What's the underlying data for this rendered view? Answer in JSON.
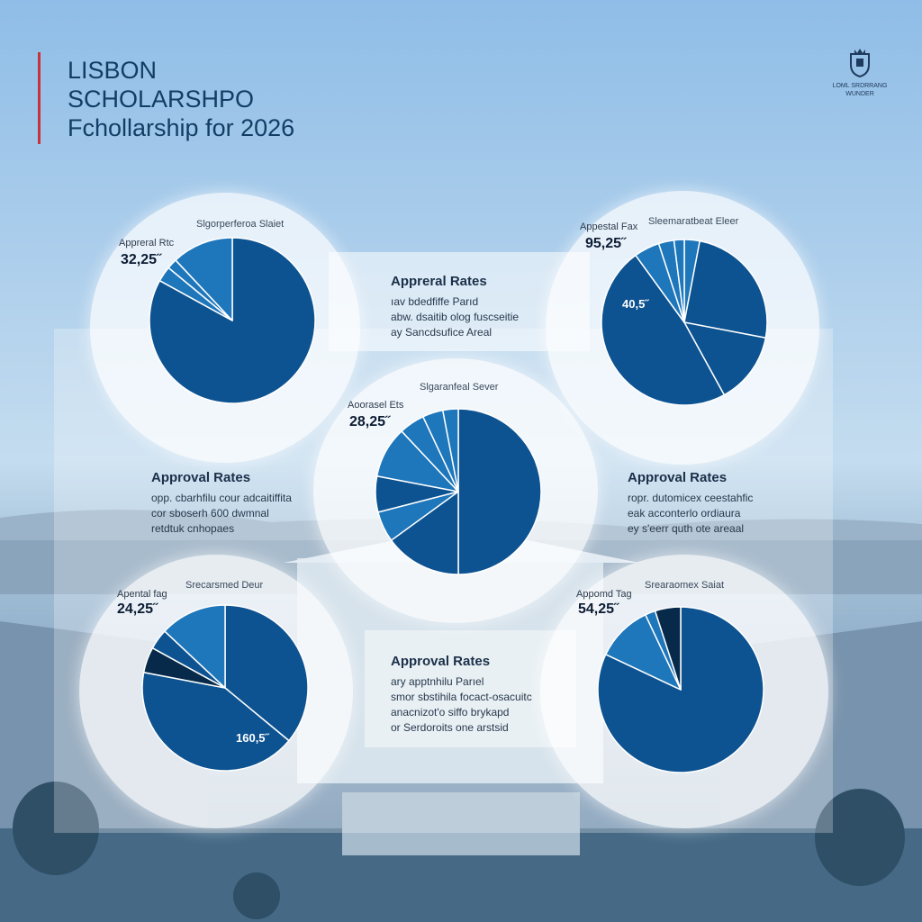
{
  "header": {
    "title_line1": "LISBON",
    "title_line2": "SCHOLARSHPO",
    "title_line3": "Fchollarship for 2026",
    "crest_line1": "LOML  SRDRRANG",
    "crest_line2": "WUNDER"
  },
  "colors": {
    "accent": "#c8323c",
    "pie_dark": "#0d5391",
    "pie_light": "#1e76bb",
    "pie_navy": "#072a4a"
  },
  "chart_data": [
    {
      "type": "pie",
      "caption": "Slgorperferoa Slaiet",
      "label": "Appreral Rtc",
      "value_label": "32,25˝",
      "slices": [
        {
          "value": 83,
          "color": "dark"
        },
        {
          "value": 3,
          "color": "light"
        },
        {
          "value": 2,
          "color": "light"
        },
        {
          "value": 12,
          "color": "light"
        }
      ]
    },
    {
      "type": "pie",
      "caption": "Sleemaratbeat Eleer",
      "label": "Appestal Fax",
      "value_label": "95,25˝",
      "inside_label": "40,5˝",
      "slices": [
        {
          "value": 3,
          "color": "light"
        },
        {
          "value": 25,
          "color": "dark"
        },
        {
          "value": 14,
          "color": "dark"
        },
        {
          "value": 48,
          "color": "dark"
        },
        {
          "value": 5,
          "color": "light"
        },
        {
          "value": 3,
          "color": "light"
        },
        {
          "value": 2,
          "color": "light"
        }
      ]
    },
    {
      "type": "pie",
      "caption": "Slgaranfeal Sever",
      "label": "Aoorasel Ets",
      "value_label": "28,25˝",
      "slices": [
        {
          "value": 50,
          "color": "dark"
        },
        {
          "value": 15,
          "color": "dark"
        },
        {
          "value": 6,
          "color": "light"
        },
        {
          "value": 7,
          "color": "dark"
        },
        {
          "value": 10,
          "color": "light"
        },
        {
          "value": 5,
          "color": "light"
        },
        {
          "value": 4,
          "color": "light"
        },
        {
          "value": 3,
          "color": "light"
        }
      ]
    },
    {
      "type": "pie",
      "caption": "Srecarsmed Deur",
      "label": "Apental fag",
      "value_label": "24,25˝",
      "inside_label": "160,5˝",
      "slices": [
        {
          "value": 36,
          "color": "dark"
        },
        {
          "value": 42,
          "color": "dark"
        },
        {
          "value": 5,
          "color": "navy"
        },
        {
          "value": 4,
          "color": "dark"
        },
        {
          "value": 13,
          "color": "light"
        }
      ]
    },
    {
      "type": "pie",
      "caption": "Srearaomex Saiat",
      "label": "Appomd Tag",
      "value_label": "54,25˝",
      "slices": [
        {
          "value": 82,
          "color": "dark"
        },
        {
          "value": 11,
          "color": "light"
        },
        {
          "value": 2,
          "color": "light"
        },
        {
          "value": 5,
          "color": "navy"
        }
      ]
    }
  ],
  "info_blocks": [
    {
      "heading": "Appreral Rates",
      "lines": [
        "ıav bdedfiffe Parıd",
        "abw. dsaitib olog fuscseitie",
        "ay Sancdsufice Areal"
      ]
    },
    {
      "heading": "Approval Rates",
      "lines": [
        "opp. cbarhfilu cour adcaitiffita",
        "cor sboserh 600 dwmnal",
        "retdtuk cnhopaes"
      ]
    },
    {
      "heading": "Approval Rates",
      "lines": [
        "ropr. dutomicex ceestahfic",
        "eak acconterlo ordiaura",
        "ey s'eerr quth ote areaal"
      ]
    },
    {
      "heading": "Approval Rates",
      "lines": [
        "ary apptnhilu Parıel",
        "smor sbstihila focact-osacuitc",
        "anacnizot'o siffo brykapd",
        "or Serdoroits one arstsid"
      ]
    }
  ]
}
